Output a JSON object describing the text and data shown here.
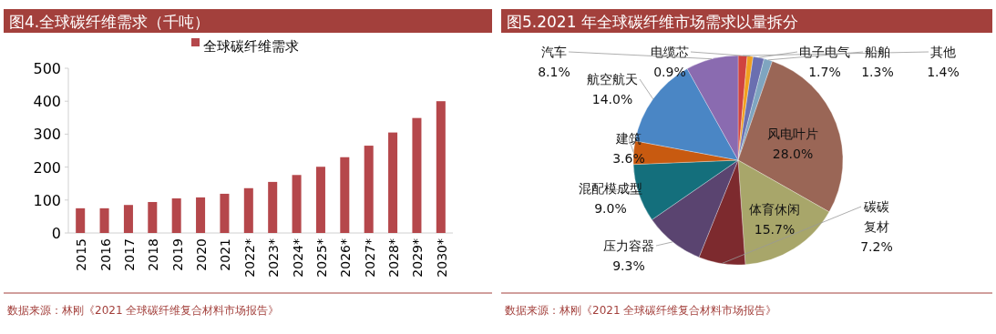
{
  "chart_data": [
    {
      "type": "bar",
      "title": "图4.全球碳纤维需求（千吨）",
      "categories": [
        "2015",
        "2016",
        "2017",
        "2018",
        "2019",
        "2020",
        "2021",
        "2022*",
        "2023*",
        "2024*",
        "2025*",
        "2026*",
        "2027*",
        "2028*",
        "2029*",
        "2030*"
      ],
      "series": [
        {
          "name": "全球碳纤维需求",
          "color": "#b5474b",
          "values": [
            75,
            75,
            85,
            94,
            105,
            108,
            119,
            136,
            155,
            176,
            201,
            230,
            265,
            305,
            349,
            400
          ]
        }
      ],
      "ylim": [
        0,
        500
      ],
      "yticks": [
        0,
        100,
        200,
        300,
        400,
        500
      ],
      "legend": "top",
      "grid": false,
      "annotations": [
        "数据来源：林刚《2021 全球碳纤维复合材料市场报告》"
      ]
    },
    {
      "type": "pie",
      "title": "图5.2021 年全球碳纤维市场需求以量拆分",
      "categories": [
        "其他",
        "电缆芯",
        "电子电气",
        "船舶",
        "风电叶片",
        "体育休闲",
        "碳碳复材",
        "压力容器",
        "混配模成型",
        "建筑",
        "航空航天",
        "汽车"
      ],
      "values": [
        1.4,
        0.9,
        1.7,
        1.3,
        28.0,
        15.7,
        7.2,
        9.3,
        9.0,
        3.6,
        14.0,
        8.1
      ],
      "colors": [
        "#d0433f",
        "#f0a020",
        "#6a6fb0",
        "#7fa5c0",
        "#9a6656",
        "#a8a66a",
        "#7d2a2e",
        "#5a4470",
        "#146f7c",
        "#c85a10",
        "#4a86c5",
        "#8a6bb0"
      ],
      "value_labels": [
        "1.4%",
        "0.9%",
        "1.7%",
        "1.3%",
        "28.0%",
        "15.7%",
        "7.2%",
        "9.3%",
        "9.0%",
        "3.6%",
        "14.0%",
        "8.1%"
      ],
      "annotations": [
        "数据来源：林刚《2021 全球碳纤维复合材料市场报告》"
      ]
    }
  ]
}
